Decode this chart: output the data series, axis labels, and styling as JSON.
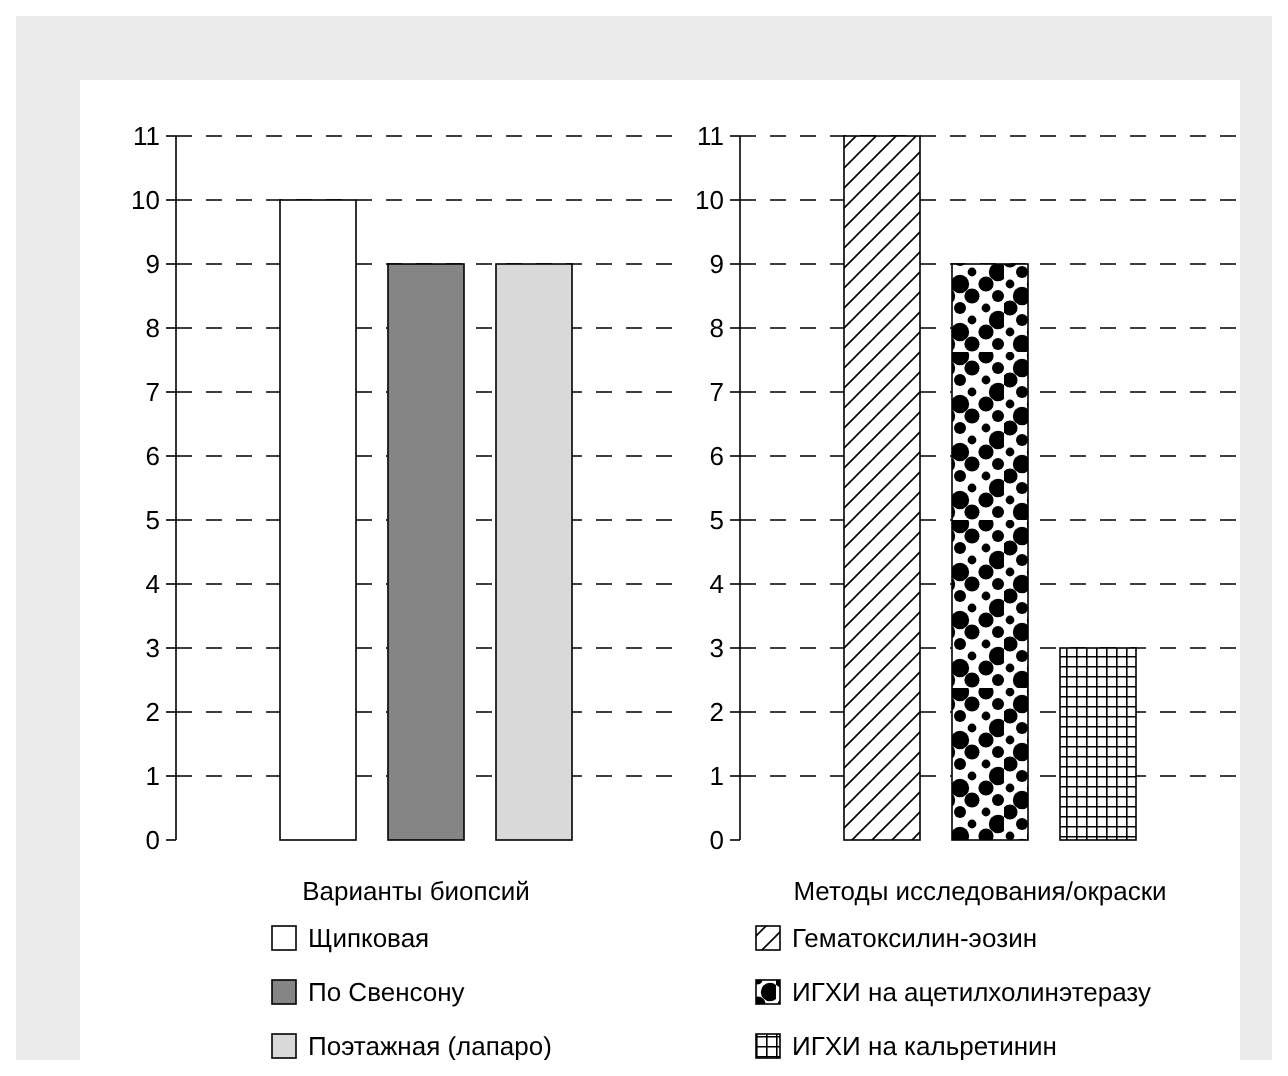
{
  "chart_data": [
    {
      "type": "bar",
      "categories": [
        null
      ],
      "xlabel": "Варианты биопсий",
      "ylim": [
        0,
        11
      ],
      "yticks": [
        0,
        1,
        2,
        3,
        4,
        5,
        6,
        7,
        8,
        9,
        10,
        11
      ],
      "grid": "y",
      "legend": "bottom",
      "series": [
        {
          "name": "Щипковая",
          "color": "#ffffff",
          "values": [
            10
          ]
        },
        {
          "name": "По Свенсону",
          "color": "#858585",
          "values": [
            9
          ]
        },
        {
          "name": "Поэтажная (лапаро)",
          "color": "#d9d9d9",
          "values": [
            9
          ]
        }
      ]
    },
    {
      "type": "bar",
      "categories": [
        null
      ],
      "xlabel": "Методы исследования/окраски",
      "ylim": [
        0,
        11
      ],
      "yticks": [
        0,
        1,
        2,
        3,
        4,
        5,
        6,
        7,
        8,
        9,
        10,
        11
      ],
      "grid": "y",
      "legend": "bottom",
      "series": [
        {
          "name": "Гематоксилин-эозин",
          "color": "#000000",
          "values": [
            11
          ]
        },
        {
          "name": "ИГХИ на ацетилхолинэтеразу",
          "color": "#000000",
          "values": [
            9
          ]
        },
        {
          "name": "ИГХИ на кальретинин",
          "color": "#000000",
          "values": [
            3
          ]
        }
      ]
    }
  ]
}
